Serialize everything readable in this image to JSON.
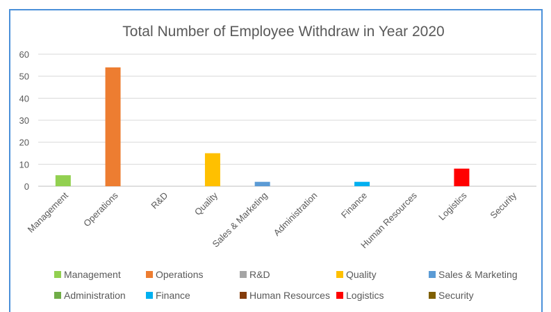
{
  "chart_data": {
    "type": "bar",
    "title": "Total Number of Employee Withdraw in Year 2020",
    "xlabel": "",
    "ylabel": "",
    "ylim": [
      0,
      60
    ],
    "yticks": [
      "0",
      "10",
      "20",
      "30",
      "40",
      "50",
      "60"
    ],
    "grid": true,
    "legend_position": "bottom",
    "categories": [
      "Management",
      "Operations",
      "R&D",
      "Quality",
      "Sales & Marketing",
      "Administration",
      "Finance",
      "Human Resources",
      "Logistics",
      "Security"
    ],
    "values": [
      5,
      54,
      0,
      15,
      2,
      0,
      2,
      0,
      8,
      0
    ],
    "colors": [
      "#92d050",
      "#ed7d31",
      "#a5a5a5",
      "#ffc000",
      "#5b9bd5",
      "#70ad47",
      "#00b0f0",
      "#843c0c",
      "#ff0000",
      "#7f6000"
    ],
    "legend": [
      "Management",
      "Operations",
      "R&D",
      "Quality",
      "Sales & Marketing",
      "Administration",
      "Finance",
      "Human Resources",
      "Logistics",
      "Security"
    ]
  }
}
